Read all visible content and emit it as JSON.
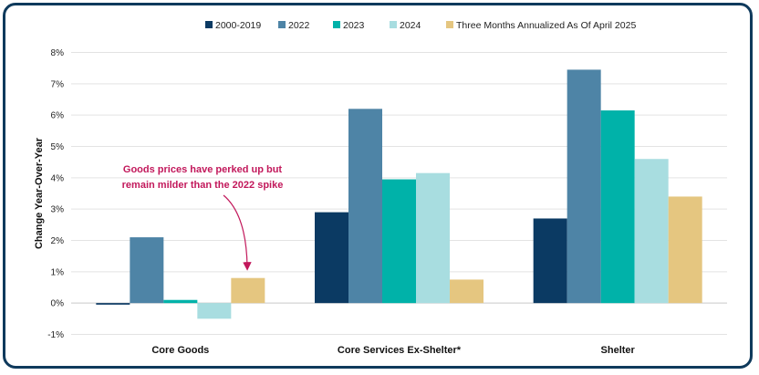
{
  "chart_data": {
    "type": "bar",
    "title": "",
    "xlabel": "",
    "ylabel": "Change Year-Over-Year",
    "ylim": [
      -1,
      8
    ],
    "yticks": [
      "-1%",
      "0%",
      "1%",
      "2%",
      "3%",
      "4%",
      "5%",
      "6%",
      "7%",
      "8%"
    ],
    "grid": true,
    "legend_position": "top",
    "categories": [
      "Core Goods",
      "Core Services Ex-Shelter*",
      "Shelter"
    ],
    "series": [
      {
        "name": "2000-2019",
        "color": "#0b3a63",
        "values": [
          -0.05,
          2.9,
          2.7
        ]
      },
      {
        "name": "2022",
        "color": "#4e84a6",
        "values": [
          2.1,
          6.2,
          7.45
        ]
      },
      {
        "name": "2023",
        "color": "#00b2a9",
        "values": [
          0.1,
          3.95,
          6.15
        ]
      },
      {
        "name": "2024",
        "color": "#a8dde0",
        "values": [
          -0.5,
          4.15,
          4.6
        ]
      },
      {
        "name": "Three Months Annualized As Of April 2025",
        "color": "#e5c680",
        "values": [
          0.8,
          0.75,
          3.4
        ]
      }
    ],
    "annotation": {
      "lines": [
        "Goods prices have perked up but",
        "remain milder than the 2022 spike"
      ],
      "color": "#c2185b"
    }
  }
}
